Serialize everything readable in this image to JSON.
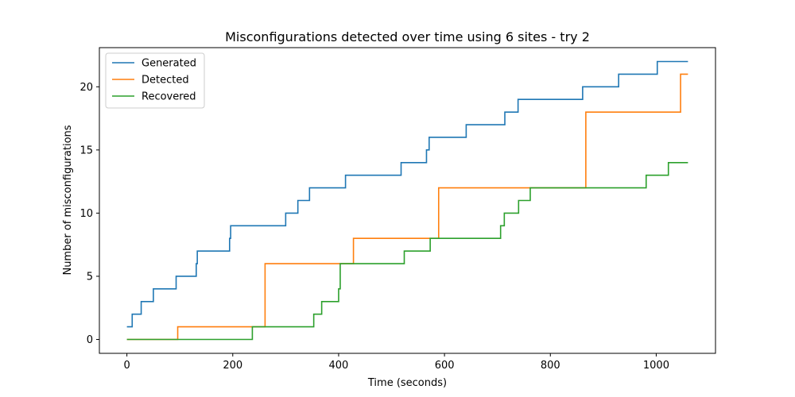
{
  "chart_data": {
    "type": "line",
    "step": true,
    "title": "Misconfigurations detected over time using 6 sites - try 2",
    "xlabel": "Time (seconds)",
    "ylabel": "Number of misconfigurations",
    "xlim": [
      -52,
      1112
    ],
    "ylim": [
      -1.1,
      23.1
    ],
    "xticks": [
      0,
      200,
      400,
      600,
      800,
      1000
    ],
    "yticks": [
      0,
      5,
      10,
      15,
      20
    ],
    "grid": false,
    "legend": "top-left",
    "series": [
      {
        "name": "Generated",
        "color": "#1f77b4",
        "points": [
          [
            0,
            1
          ],
          [
            10,
            1
          ],
          [
            10,
            2
          ],
          [
            27,
            2
          ],
          [
            27,
            3
          ],
          [
            50,
            3
          ],
          [
            50,
            4
          ],
          [
            93,
            4
          ],
          [
            93,
            5
          ],
          [
            131,
            5
          ],
          [
            131,
            6
          ],
          [
            133,
            6
          ],
          [
            133,
            7
          ],
          [
            194,
            7
          ],
          [
            194,
            8
          ],
          [
            196,
            8
          ],
          [
            196,
            9
          ],
          [
            300,
            9
          ],
          [
            300,
            10
          ],
          [
            323,
            10
          ],
          [
            323,
            11
          ],
          [
            345,
            11
          ],
          [
            345,
            12
          ],
          [
            413,
            12
          ],
          [
            413,
            13
          ],
          [
            518,
            13
          ],
          [
            518,
            14
          ],
          [
            566,
            14
          ],
          [
            566,
            15
          ],
          [
            571,
            15
          ],
          [
            571,
            16
          ],
          [
            641,
            16
          ],
          [
            641,
            17
          ],
          [
            714,
            17
          ],
          [
            714,
            18
          ],
          [
            739,
            18
          ],
          [
            739,
            19
          ],
          [
            861,
            19
          ],
          [
            861,
            20
          ],
          [
            929,
            20
          ],
          [
            929,
            21
          ],
          [
            1002,
            21
          ],
          [
            1002,
            22
          ],
          [
            1060,
            22
          ]
        ]
      },
      {
        "name": "Detected",
        "color": "#ff7f0e",
        "points": [
          [
            0,
            0
          ],
          [
            96,
            0
          ],
          [
            96,
            1
          ],
          [
            261,
            1
          ],
          [
            261,
            6
          ],
          [
            428,
            6
          ],
          [
            428,
            8
          ],
          [
            589,
            8
          ],
          [
            589,
            12
          ],
          [
            867,
            12
          ],
          [
            867,
            18
          ],
          [
            1046,
            18
          ],
          [
            1046,
            21
          ],
          [
            1060,
            21
          ]
        ]
      },
      {
        "name": "Recovered",
        "color": "#2ca02c",
        "points": [
          [
            0,
            0
          ],
          [
            237,
            0
          ],
          [
            237,
            1
          ],
          [
            353,
            1
          ],
          [
            353,
            2
          ],
          [
            368,
            2
          ],
          [
            368,
            3
          ],
          [
            400,
            3
          ],
          [
            400,
            4
          ],
          [
            403,
            4
          ],
          [
            403,
            6
          ],
          [
            524,
            6
          ],
          [
            524,
            7
          ],
          [
            573,
            7
          ],
          [
            573,
            8
          ],
          [
            706,
            8
          ],
          [
            706,
            9
          ],
          [
            713,
            9
          ],
          [
            713,
            10
          ],
          [
            740,
            10
          ],
          [
            740,
            11
          ],
          [
            762,
            11
          ],
          [
            762,
            12
          ],
          [
            981,
            12
          ],
          [
            981,
            13
          ],
          [
            1023,
            13
          ],
          [
            1023,
            14
          ],
          [
            1060,
            14
          ]
        ]
      }
    ]
  }
}
